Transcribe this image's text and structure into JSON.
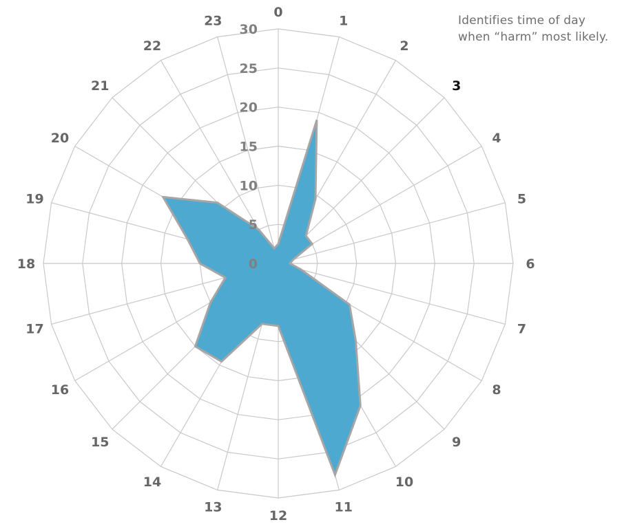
{
  "annotation": {
    "line1": "Identifies time of day",
    "line2": "when “harm” most likely."
  },
  "chart_data": {
    "type": "radar",
    "categories": [
      "0",
      "1",
      "2",
      "3",
      "4",
      "5",
      "6",
      "7",
      "8",
      "9",
      "10",
      "11",
      "12",
      "13",
      "14",
      "15",
      "16",
      "17",
      "18",
      "19",
      "20",
      "21",
      "22",
      "23"
    ],
    "emphasized_category": "3",
    "radial_ticks": [
      "0",
      "5",
      "10",
      "15",
      "20",
      "25",
      "30"
    ],
    "rlim": [
      0,
      30
    ],
    "grid": true,
    "series": [
      {
        "values": [
          2.5,
          19,
          9.5,
          5,
          5,
          2,
          1.5,
          3,
          10.5,
          14,
          21,
          28,
          8,
          8,
          14.5,
          15,
          10,
          7,
          10,
          12,
          17,
          11,
          5,
          2
        ],
        "fill": "#4ea9d0",
        "stroke": "#a6a6a6"
      }
    ],
    "colors": {
      "grid": "#c8c8c8",
      "labels": "#666666",
      "tick_labels": "#808080",
      "emphasis": "#111111"
    }
  }
}
